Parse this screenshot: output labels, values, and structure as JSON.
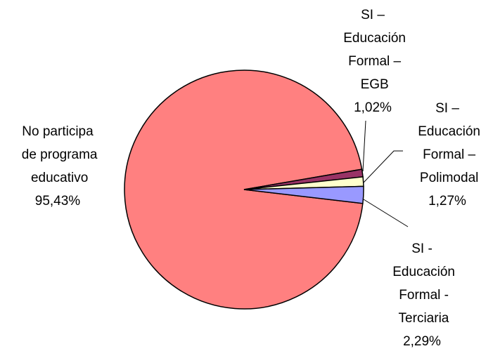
{
  "chart_data": {
    "type": "pie",
    "categories": [
      "No participa de programa educativo",
      "SI – Educación Formal – EGB",
      "SI – Educación Formal – Polimodal",
      "SI - Educación Formal - Terciaria"
    ],
    "values": [
      95.43,
      1.02,
      1.27,
      2.29
    ],
    "value_labels": [
      "95,43%",
      "1,02%",
      "1,27%",
      "2,29%"
    ],
    "colors": [
      "#FF8080",
      "#993366",
      "#FFFFCC",
      "#9999FF"
    ]
  }
}
